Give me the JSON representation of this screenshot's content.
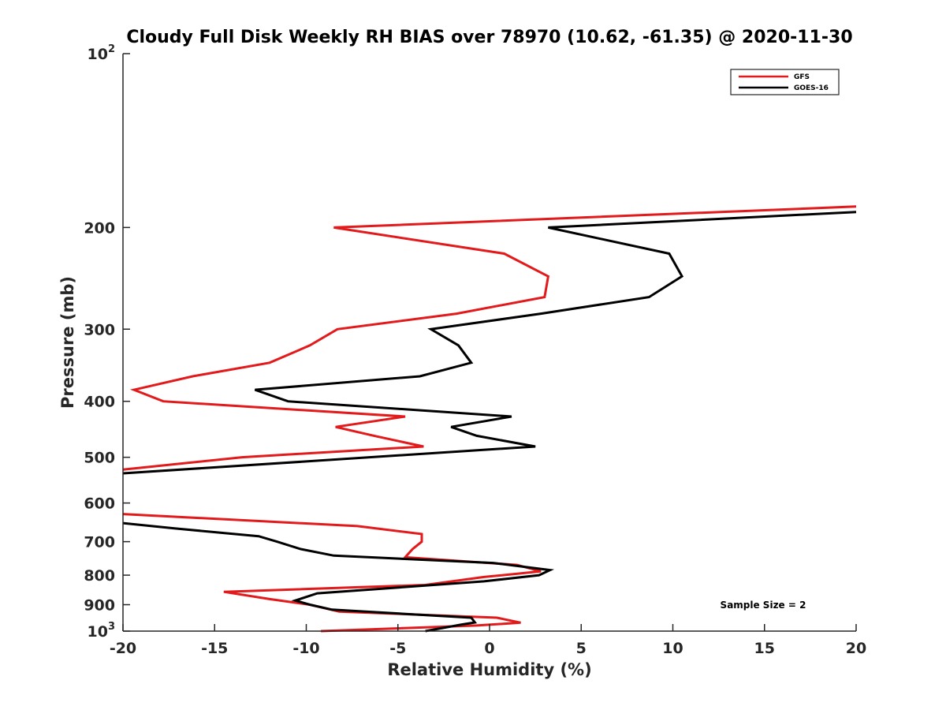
{
  "chart_data": {
    "type": "line",
    "title": "Cloudy Full Disk Weekly RH BIAS over 78970 (10.62, -61.35) @ 2020-11-30",
    "xlabel": "Relative Humidity (%)",
    "ylabel": "Pressure (mb)",
    "xlim": [
      -20,
      20
    ],
    "ylim": [
      100,
      1000
    ],
    "y_scale": "log",
    "y_reversed": true,
    "x_ticks": [
      "-20",
      "-15",
      "-10",
      "-5",
      "0",
      "5",
      "10",
      "15",
      "20"
    ],
    "y_ticks": [
      {
        "value": 100,
        "base": "10",
        "exp": "2"
      },
      {
        "value": 200,
        "label": "200"
      },
      {
        "value": 300,
        "label": "300"
      },
      {
        "value": 400,
        "label": "400"
      },
      {
        "value": 500,
        "label": "500"
      },
      {
        "value": 600,
        "label": "600"
      },
      {
        "value": 700,
        "label": "700"
      },
      {
        "value": 800,
        "label": "800"
      },
      {
        "value": 900,
        "label": "900"
      },
      {
        "value": 1000,
        "base": "10",
        "exp": "3"
      }
    ],
    "grid": false,
    "legend_position": "top-right",
    "annotation": "Sample Size = 2",
    "series": [
      {
        "name": "GFS",
        "color": "#e31a1c",
        "points": [
          [
            20,
            184
          ],
          [
            -8.5,
            200
          ],
          [
            0.8,
            222
          ],
          [
            3.2,
            243
          ],
          [
            3.0,
            264
          ],
          [
            -1.8,
            282
          ],
          [
            -8.3,
            300
          ],
          [
            -9.8,
            320
          ],
          [
            -12.0,
            343
          ],
          [
            -16.2,
            362
          ],
          [
            -19.4,
            382
          ],
          [
            -17.8,
            400
          ],
          [
            -4.6,
            425
          ],
          [
            -8.4,
            443
          ],
          [
            -6.3,
            459
          ],
          [
            -3.6,
            479
          ],
          [
            -13.5,
            500
          ],
          [
            -20,
            525
          ]
        ]
      },
      {
        "name": "GOES-16",
        "color": "#000000",
        "points": [
          [
            20,
            188
          ],
          [
            3.2,
            200
          ],
          [
            9.8,
            222
          ],
          [
            10.5,
            243
          ],
          [
            8.7,
            264
          ],
          [
            2.8,
            282
          ],
          [
            -3.2,
            300
          ],
          [
            -1.7,
            320
          ],
          [
            -1.0,
            343
          ],
          [
            -3.8,
            362
          ],
          [
            -12.8,
            382
          ],
          [
            -11.0,
            400
          ],
          [
            1.2,
            425
          ],
          [
            -2.1,
            443
          ],
          [
            -0.7,
            459
          ],
          [
            2.5,
            479
          ],
          [
            -20,
            533
          ]
        ]
      },
      {
        "name": "GFS",
        "color": "#e31a1c",
        "points": [
          [
            -20,
            627
          ],
          [
            -7.2,
            658
          ],
          [
            -3.7,
            679
          ],
          [
            -3.7,
            700
          ],
          [
            -4.2,
            721
          ],
          [
            -4.6,
            745
          ],
          [
            1.5,
            768
          ],
          [
            2.8,
            788
          ],
          [
            -0.3,
            806
          ],
          [
            -3.5,
            832
          ],
          [
            -14.5,
            855
          ],
          [
            -12.0,
            880
          ],
          [
            -9.8,
            900
          ],
          [
            -8.2,
            925
          ],
          [
            0.4,
            948
          ],
          [
            1.7,
            967
          ],
          [
            -0.7,
            978
          ],
          [
            -9.2,
            1000
          ]
        ]
      },
      {
        "name": "GOES-16",
        "color": "#000000",
        "points": [
          [
            -20,
            650
          ],
          [
            -17.2,
            664
          ],
          [
            -12.6,
            685
          ],
          [
            -11.6,
            700
          ],
          [
            -10.3,
            721
          ],
          [
            -8.5,
            740
          ],
          [
            0.2,
            762
          ],
          [
            3.3,
            784
          ],
          [
            2.7,
            800
          ],
          [
            -0.3,
            820
          ],
          [
            -9.4,
            860
          ],
          [
            -10.6,
            885
          ],
          [
            -9.8,
            900
          ],
          [
            -8.6,
            918
          ],
          [
            -1.0,
            948
          ],
          [
            -0.8,
            966
          ],
          [
            -1.6,
            975
          ],
          [
            -3.5,
            1000
          ]
        ]
      }
    ],
    "legend": [
      {
        "name": "GFS",
        "color": "#e31a1c"
      },
      {
        "name": "GOES-16",
        "color": "#000000"
      }
    ]
  }
}
